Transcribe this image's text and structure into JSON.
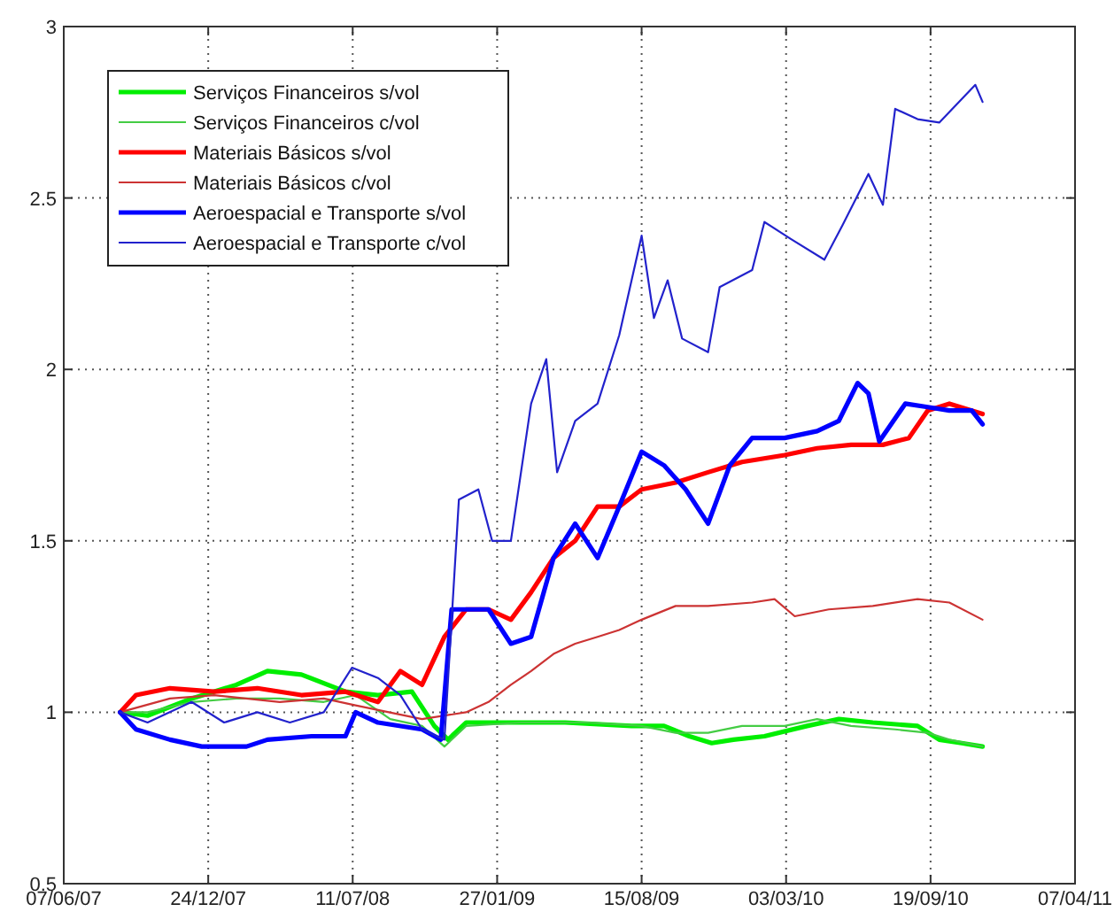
{
  "chart_data": {
    "type": "line",
    "xlim": [
      "2007-06-07",
      "2011-04-07"
    ],
    "ylim": [
      0.5,
      3
    ],
    "xticks": [
      {
        "value": "2007-06-07",
        "label": "07/06/07"
      },
      {
        "value": "2007-12-24",
        "label": "24/12/07"
      },
      {
        "value": "2008-07-11",
        "label": "11/07/08"
      },
      {
        "value": "2009-01-27",
        "label": "27/01/09"
      },
      {
        "value": "2009-08-15",
        "label": "15/08/09"
      },
      {
        "value": "2010-03-03",
        "label": "03/03/10"
      },
      {
        "value": "2010-09-19",
        "label": "19/09/10"
      },
      {
        "value": "2011-04-07",
        "label": "07/04/11"
      }
    ],
    "yticks": [
      0.5,
      1,
      1.5,
      2,
      2.5,
      3
    ],
    "grid": true,
    "legend": "top left",
    "marker": "none",
    "line_style": "solid",
    "series": [
      {
        "name": "Serviços Financeiros s/vol",
        "color": "#00ee00",
        "x": [
          "2007-08-24",
          "2007-10-01",
          "2007-12-01",
          "2008-02-01",
          "2008-03-15",
          "2008-05-01",
          "2008-07-01",
          "2008-08-15",
          "2008-10-01",
          "2008-11-01",
          "2008-11-20",
          "2008-12-15",
          "2009-02-01",
          "2009-05-01",
          "2009-08-01",
          "2009-09-15",
          "2009-10-20",
          "2009-11-20",
          "2009-12-20",
          "2010-02-01",
          "2010-04-01",
          "2010-05-15",
          "2010-07-01",
          "2010-09-01",
          "2010-10-01",
          "2010-11-01",
          "2010-11-30"
        ],
        "values": [
          1.0,
          0.99,
          1.04,
          1.08,
          1.12,
          1.11,
          1.06,
          1.05,
          1.06,
          0.96,
          0.92,
          0.97,
          0.97,
          0.97,
          0.96,
          0.96,
          0.93,
          0.91,
          0.92,
          0.93,
          0.96,
          0.98,
          0.97,
          0.96,
          0.92,
          0.91,
          0.9
        ]
      },
      {
        "name": "Serviços Financeiros c/vol",
        "color": "#44cc44",
        "x": [
          "2007-08-24",
          "2007-10-01",
          "2007-12-01",
          "2008-02-01",
          "2008-04-01",
          "2008-06-01",
          "2008-07-15",
          "2008-09-01",
          "2008-10-15",
          "2008-11-15",
          "2008-12-15",
          "2009-03-01",
          "2009-06-01",
          "2009-08-15",
          "2009-10-01",
          "2009-11-15",
          "2010-01-01",
          "2010-03-01",
          "2010-04-15",
          "2010-06-01",
          "2010-08-01",
          "2010-09-15",
          "2010-10-15",
          "2010-11-30"
        ],
        "values": [
          1.0,
          1.0,
          1.03,
          1.04,
          1.04,
          1.03,
          1.05,
          0.98,
          0.96,
          0.9,
          0.96,
          0.97,
          0.97,
          0.96,
          0.94,
          0.94,
          0.96,
          0.96,
          0.98,
          0.96,
          0.95,
          0.94,
          0.92,
          0.9
        ]
      },
      {
        "name": "Materiais Básicos s/vol",
        "color": "#ff0000",
        "x": [
          "2007-08-24",
          "2007-09-15",
          "2007-11-01",
          "2008-01-01",
          "2008-03-01",
          "2008-05-01",
          "2008-07-01",
          "2008-08-15",
          "2008-09-15",
          "2008-10-15",
          "2008-11-15",
          "2008-12-15",
          "2009-01-15",
          "2009-02-15",
          "2009-03-15",
          "2009-04-15",
          "2009-05-15",
          "2009-06-15",
          "2009-07-15",
          "2009-08-15",
          "2009-10-01",
          "2009-11-15",
          "2010-01-01",
          "2010-03-01",
          "2010-04-15",
          "2010-06-01",
          "2010-07-15",
          "2010-08-20",
          "2010-09-15",
          "2010-10-15",
          "2010-11-30"
        ],
        "values": [
          1.0,
          1.05,
          1.07,
          1.06,
          1.07,
          1.05,
          1.06,
          1.03,
          1.12,
          1.08,
          1.22,
          1.3,
          1.3,
          1.27,
          1.35,
          1.45,
          1.5,
          1.6,
          1.6,
          1.65,
          1.67,
          1.7,
          1.73,
          1.75,
          1.77,
          1.78,
          1.78,
          1.8,
          1.88,
          1.9,
          1.87
        ]
      },
      {
        "name": "Materiais Básicos c/vol",
        "color": "#cc3333",
        "x": [
          "2007-08-24",
          "2007-11-01",
          "2008-01-01",
          "2008-04-01",
          "2008-06-01",
          "2008-07-15",
          "2008-10-15",
          "2008-12-15",
          "2009-01-15",
          "2009-02-15",
          "2009-03-15",
          "2009-04-15",
          "2009-05-15",
          "2009-06-15",
          "2009-07-15",
          "2009-08-15",
          "2009-10-01",
          "2009-11-15",
          "2010-01-15",
          "2010-02-15",
          "2010-03-15",
          "2010-05-01",
          "2010-07-01",
          "2010-09-01",
          "2010-10-15",
          "2010-11-30"
        ],
        "values": [
          1.0,
          1.04,
          1.05,
          1.03,
          1.04,
          1.02,
          0.98,
          1.0,
          1.03,
          1.08,
          1.12,
          1.17,
          1.2,
          1.22,
          1.24,
          1.27,
          1.31,
          1.31,
          1.32,
          1.33,
          1.28,
          1.3,
          1.31,
          1.33,
          1.32,
          1.27
        ]
      },
      {
        "name": "Aeroespacial e Transporte s/vol",
        "color": "#0000ff",
        "x": [
          "2007-08-24",
          "2007-09-15",
          "2007-11-01",
          "2007-12-15",
          "2008-02-15",
          "2008-03-15",
          "2008-05-15",
          "2008-07-01",
          "2008-07-15",
          "2008-08-15",
          "2008-10-15",
          "2008-11-10",
          "2008-11-25",
          "2008-12-15",
          "2009-01-15",
          "2009-02-15",
          "2009-03-15",
          "2009-04-15",
          "2009-05-15",
          "2009-06-15",
          "2009-07-15",
          "2009-08-15",
          "2009-09-15",
          "2009-10-15",
          "2009-11-15",
          "2009-12-15",
          "2010-01-15",
          "2010-03-01",
          "2010-04-15",
          "2010-05-15",
          "2010-06-10",
          "2010-06-25",
          "2010-07-10",
          "2010-08-15",
          "2010-09-15",
          "2010-10-15",
          "2010-11-15",
          "2010-11-30"
        ],
        "values": [
          1.0,
          0.95,
          0.92,
          0.9,
          0.9,
          0.92,
          0.93,
          0.93,
          1.0,
          0.97,
          0.95,
          0.92,
          1.3,
          1.3,
          1.3,
          1.2,
          1.22,
          1.45,
          1.55,
          1.45,
          1.6,
          1.76,
          1.72,
          1.65,
          1.55,
          1.72,
          1.8,
          1.8,
          1.82,
          1.85,
          1.96,
          1.93,
          1.79,
          1.9,
          1.89,
          1.88,
          1.88,
          1.84
        ]
      },
      {
        "name": "Aeroespacial e Transporte c/vol",
        "color": "#2222cc",
        "x": [
          "2007-08-24",
          "2007-10-01",
          "2007-12-01",
          "2008-01-15",
          "2008-03-01",
          "2008-04-15",
          "2008-06-01",
          "2008-07-10",
          "2008-08-15",
          "2008-09-15",
          "2008-10-15",
          "2008-11-15",
          "2008-12-05",
          "2009-01-01",
          "2009-01-20",
          "2009-02-15",
          "2009-03-15",
          "2009-04-05",
          "2009-04-20",
          "2009-05-15",
          "2009-06-15",
          "2009-07-15",
          "2009-08-15",
          "2009-09-01",
          "2009-09-20",
          "2009-10-10",
          "2009-11-15",
          "2009-12-01",
          "2010-01-15",
          "2010-02-01",
          "2010-03-10",
          "2010-04-25",
          "2010-05-20",
          "2010-06-25",
          "2010-07-15",
          "2010-08-01",
          "2010-09-01",
          "2010-10-01",
          "2010-11-20",
          "2010-11-30"
        ],
        "values": [
          1.0,
          0.97,
          1.03,
          0.97,
          1.0,
          0.97,
          1.0,
          1.13,
          1.1,
          1.05,
          0.95,
          0.92,
          1.62,
          1.65,
          1.5,
          1.5,
          1.9,
          2.03,
          1.7,
          1.85,
          1.9,
          2.1,
          2.39,
          2.15,
          2.26,
          2.09,
          2.05,
          2.24,
          2.29,
          2.43,
          2.38,
          2.32,
          2.42,
          2.57,
          2.48,
          2.76,
          2.73,
          2.72,
          2.83,
          2.78
        ]
      }
    ]
  }
}
